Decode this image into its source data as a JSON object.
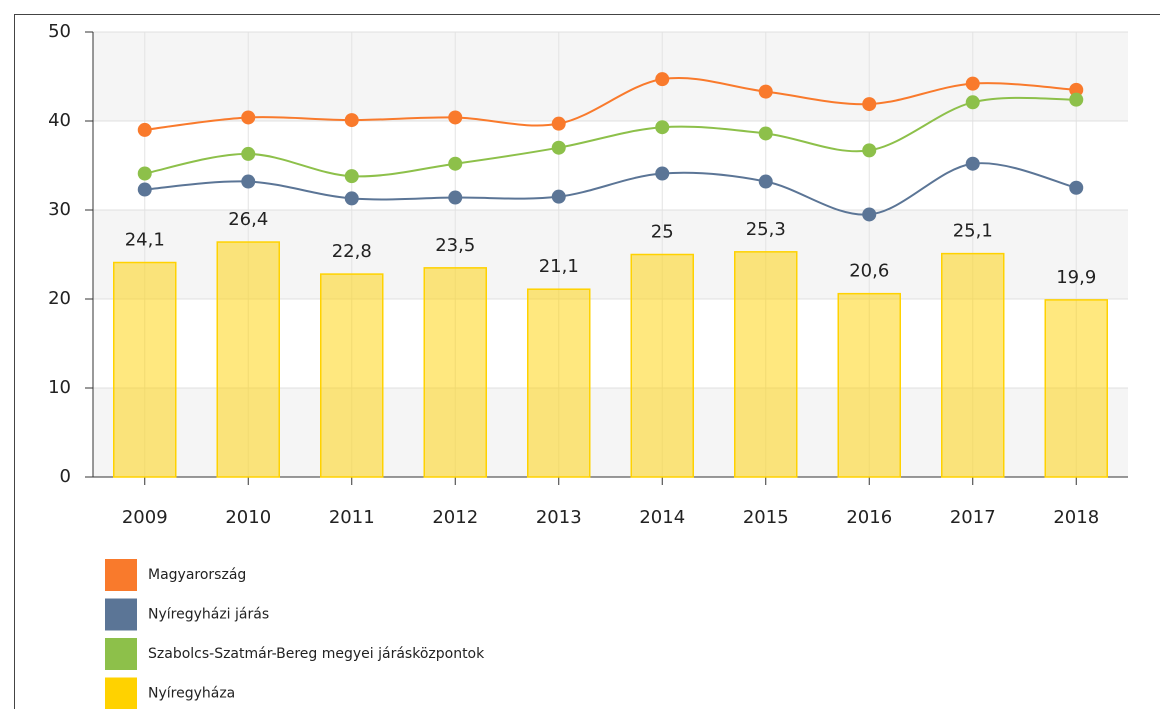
{
  "chart_data": {
    "type": "combo",
    "categories": [
      "2009",
      "2010",
      "2011",
      "2012",
      "2013",
      "2014",
      "2015",
      "2016",
      "2017",
      "2018"
    ],
    "series": [
      {
        "name": "Magyarország",
        "type": "line",
        "color": "#f97a2c",
        "values": [
          39.0,
          40.4,
          40.1,
          40.4,
          39.7,
          44.7,
          43.3,
          41.9,
          44.2,
          43.5
        ]
      },
      {
        "name": "Nyíregyházi járás",
        "type": "line",
        "color": "#5b7596",
        "values": [
          32.3,
          33.2,
          31.3,
          31.4,
          31.5,
          34.1,
          33.2,
          29.5,
          35.2,
          32.5
        ]
      },
      {
        "name": "Szabolcs-Szatmár-Bereg megyei járásközpontok",
        "type": "line",
        "color": "#8dc04a",
        "values": [
          34.1,
          36.3,
          33.8,
          35.2,
          37.0,
          39.3,
          38.6,
          36.7,
          42.1,
          42.4
        ]
      },
      {
        "name": "Nyíregyháza",
        "type": "bar",
        "color": "#ffd200",
        "values": [
          24.1,
          26.4,
          22.8,
          23.5,
          21.1,
          25,
          25.3,
          20.6,
          25.1,
          19.9
        ],
        "value_labels": [
          "24,1",
          "26,4",
          "22,8",
          "23,5",
          "21,1",
          "25",
          "25,3",
          "20,6",
          "25,1",
          "19,9"
        ]
      }
    ],
    "ylim": [
      0,
      50
    ],
    "yticks": [
      0,
      10,
      20,
      30,
      40,
      50
    ],
    "grid": true,
    "legend": "bottom-left"
  }
}
